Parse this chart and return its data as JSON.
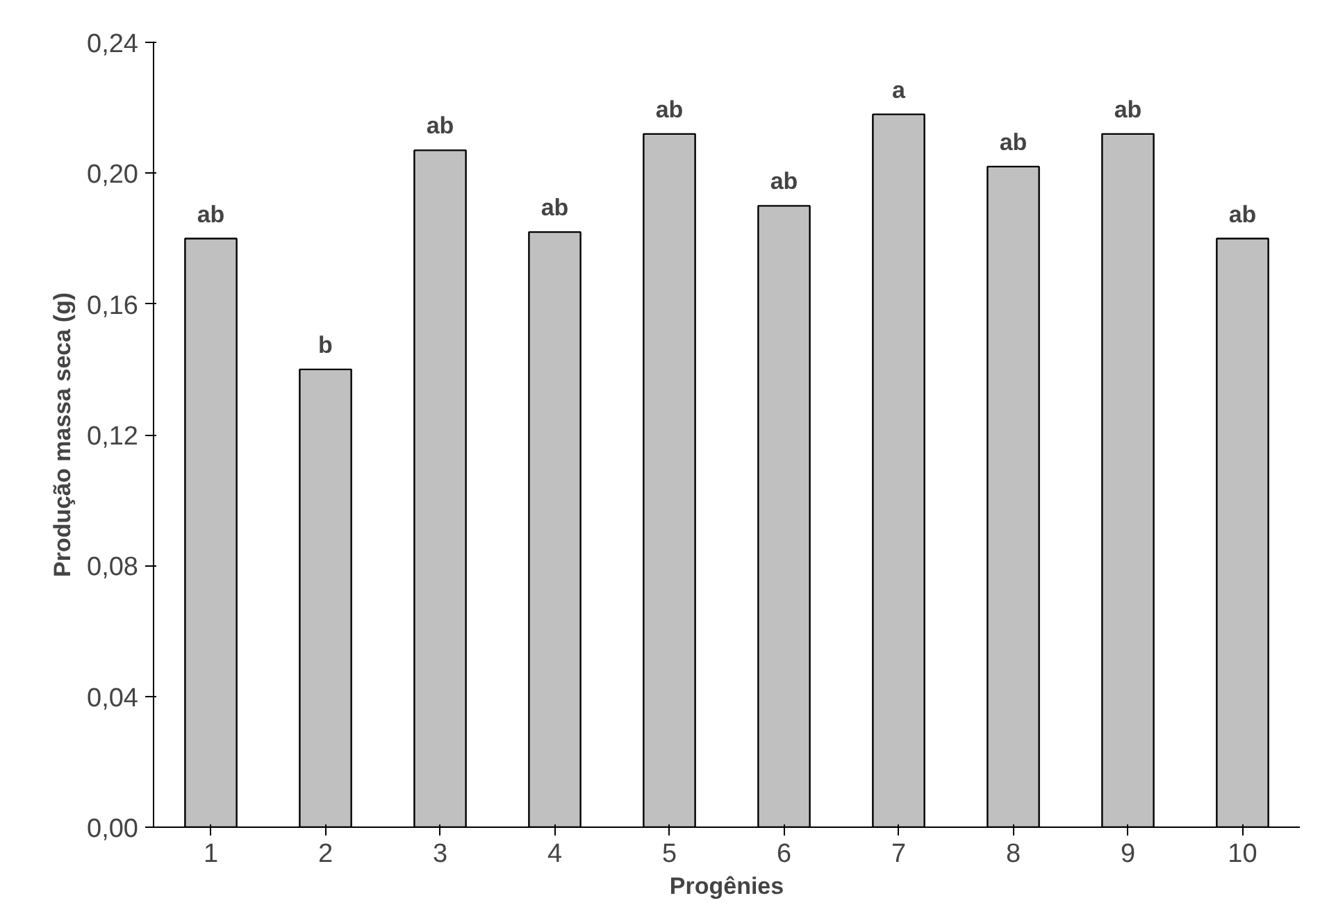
{
  "chart_data": {
    "type": "bar",
    "xlabel": "Progênies",
    "ylabel": "Produção massa seca (g)",
    "categories": [
      "1",
      "2",
      "3",
      "4",
      "5",
      "6",
      "7",
      "8",
      "9",
      "10"
    ],
    "values": [
      0.18,
      0.14,
      0.207,
      0.182,
      0.212,
      0.19,
      0.218,
      0.202,
      0.212,
      0.18
    ],
    "color": "#c0c0c0",
    "ylim": [
      0,
      0.24
    ],
    "yticks": [
      {
        "value": 0,
        "label": "0,00"
      },
      {
        "value": 0.04,
        "label": "0,04"
      },
      {
        "value": 0.08,
        "label": "0,08"
      },
      {
        "value": 0.12,
        "label": "0,12"
      },
      {
        "value": 0.16,
        "label": "0,16"
      },
      {
        "value": 0.2,
        "label": "0,20"
      },
      {
        "value": 0.24,
        "label": "0,24"
      }
    ],
    "annotations": [
      {
        "text": "ab",
        "x": "1",
        "y": 0.18
      },
      {
        "text": "b",
        "x": "2",
        "y": 0.14
      },
      {
        "text": "ab",
        "x": "3",
        "y": 0.207
      },
      {
        "text": "ab",
        "x": "4",
        "y": 0.182
      },
      {
        "text": "ab",
        "x": "5",
        "y": 0.212
      },
      {
        "text": "ab",
        "x": "6",
        "y": 0.19
      },
      {
        "text": "a",
        "x": "7",
        "y": 0.218
      },
      {
        "text": "ab",
        "x": "8",
        "y": 0.202
      },
      {
        "text": "ab",
        "x": "9",
        "y": 0.212
      },
      {
        "text": "ab",
        "x": "10",
        "y": 0.18
      }
    ],
    "grid": false
  }
}
